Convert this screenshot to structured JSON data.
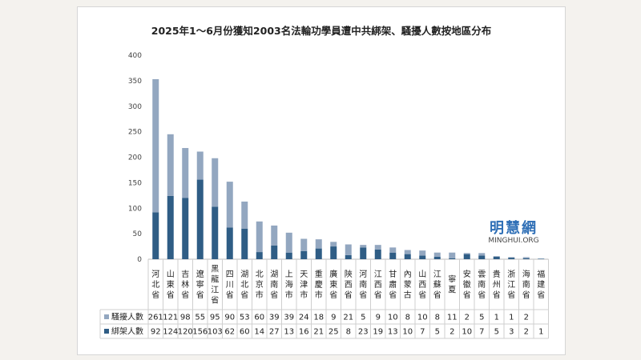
{
  "chart_data": {
    "type": "bar",
    "stacked": true,
    "title": "2025年1～6月份獲知2003名法輪功學員遭中共綁架、騷擾人數按地區分布",
    "ylim": [
      0,
      400
    ],
    "yticks": [
      0,
      50,
      100,
      150,
      200,
      250,
      300,
      350,
      400
    ],
    "grid": false,
    "legend": "bottom-left",
    "categories": [
      "河北省",
      "山東省",
      "吉林省",
      "遼寧省",
      "黑龍江省",
      "四川省",
      "湖北省",
      "北京市",
      "湖南省",
      "上海市",
      "天津市",
      "重慶市",
      "廣東省",
      "陝西省",
      "河南省",
      "江西省",
      "甘肅省",
      "內蒙古",
      "山西省",
      "江蘇省",
      "寧夏",
      "安徽省",
      "雲南省",
      "貴州省",
      "浙江省",
      "海南省",
      "福建省"
    ],
    "series": [
      {
        "name": "綁架人數",
        "color": "#2f5d85",
        "values": [
          92,
          124,
          120,
          156,
          103,
          62,
          60,
          14,
          27,
          13,
          16,
          21,
          25,
          8,
          23,
          19,
          13,
          10,
          7,
          5,
          2,
          10,
          7,
          5,
          3,
          2,
          1
        ]
      },
      {
        "name": "騷擾人數",
        "color": "#93a7c0",
        "values": [
          261,
          121,
          98,
          55,
          95,
          90,
          53,
          60,
          39,
          39,
          24,
          18,
          9,
          21,
          5,
          9,
          10,
          8,
          10,
          8,
          11,
          2,
          5,
          1,
          1,
          2,
          null
        ]
      }
    ],
    "table_rows": [
      {
        "name": "騷擾人數",
        "color": "#93a7c0",
        "cells": [
          "261",
          "121",
          "98",
          "55",
          "95",
          "90",
          "53",
          "60",
          "39",
          "39",
          "24",
          "18",
          "9",
          "21",
          "5",
          "9",
          "10",
          "8",
          "10",
          "8",
          "11",
          "2",
          "5",
          "1",
          "1",
          "2",
          ""
        ]
      },
      {
        "name": "綁架人數",
        "color": "#2f5d85",
        "cells": [
          "92",
          "124",
          "120",
          "156",
          "103",
          "62",
          "60",
          "14",
          "27",
          "13",
          "16",
          "21",
          "25",
          "8",
          "23",
          "19",
          "13",
          "10",
          "7",
          "5",
          "2",
          "10",
          "7",
          "5",
          "3",
          "2",
          "1"
        ]
      }
    ]
  },
  "watermark": {
    "cn": "明慧網",
    "en": "MINGHUI.ORG"
  }
}
